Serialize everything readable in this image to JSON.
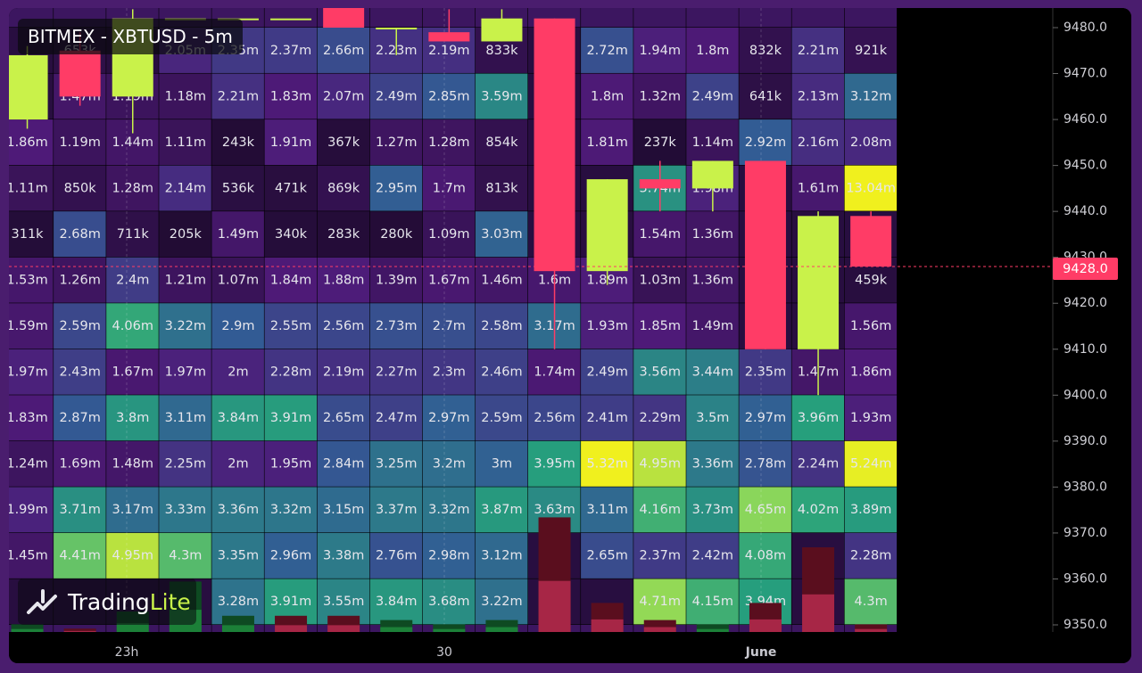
{
  "title": "BITMEX - XBTUSD - 5m",
  "logo": {
    "text_main": "Trading",
    "text_accent": "Lite"
  },
  "current_price": "9428.0",
  "colors": {
    "background": "#000000",
    "frame": "#4a1d6e",
    "bull": "#c9f24a",
    "bear": "#ff3c66",
    "heat_low": "#1b0a2a",
    "heat_mid1": "#4b1a78",
    "heat_mid2": "#2f5f95",
    "heat_mid3": "#27a07c",
    "heat_high": "#f2f21a"
  },
  "chart_data": {
    "type": "heatmap",
    "subtype": "order-book liquidity heatmap with candlesticks and volume bars",
    "y_axis": {
      "ticks": [
        "9480.0",
        "9470.0",
        "9460.0",
        "9450.0",
        "9440.0",
        "9430.0",
        "9420.0",
        "9410.0",
        "9400.0",
        "9390.0",
        "9380.0",
        "9370.0",
        "9360.0",
        "9350.0"
      ],
      "range": [
        9348,
        9484
      ]
    },
    "x_axis": {
      "labels": [
        "23h",
        "30",
        "June"
      ]
    },
    "rows": [
      [
        "1.86m",
        "1.19m",
        "1.44m",
        "1.11m",
        "243k",
        "1.91m",
        "367k",
        "1.27m",
        "1.28m",
        "854k",
        "",
        "1.81m",
        "237k",
        "1.14m",
        "2.92m",
        "2.16m",
        "2.08m"
      ],
      [
        "1.11m",
        "850k",
        "1.28m",
        "2.14m",
        "536k",
        "471k",
        "869k",
        "2.95m",
        "1.7m",
        "813k",
        "",
        "",
        "3.74m",
        "1.98m",
        "",
        "1.61m",
        "13.04m"
      ],
      [
        "311k",
        "2.68m",
        "711k",
        "205k",
        "1.49m",
        "340k",
        "283k",
        "280k",
        "1.09m",
        "3.03m",
        "",
        "",
        "1.54m",
        "1.36m",
        "",
        "",
        ""
      ],
      [
        "1.53m",
        "1.26m",
        "2.4m",
        "1.21m",
        "1.07m",
        "1.84m",
        "1.88m",
        "1.39m",
        "1.67m",
        "1.46m",
        "1.6m",
        "1.89m",
        "1.03m",
        "1.36m",
        "",
        "",
        "459k"
      ],
      [
        "1.59m",
        "2.59m",
        "4.06m",
        "3.22m",
        "2.9m",
        "2.55m",
        "2.56m",
        "2.73m",
        "2.7m",
        "2.58m",
        "3.17m",
        "1.93m",
        "1.85m",
        "1.49m",
        "",
        "",
        "1.56m"
      ],
      [
        "1.97m",
        "2.43m",
        "1.67m",
        "1.97m",
        "2m",
        "2.28m",
        "2.19m",
        "2.27m",
        "2.3m",
        "2.46m",
        "1.74m",
        "2.49m",
        "3.56m",
        "3.44m",
        "2.35m",
        "1.47m",
        "1.86m"
      ],
      [
        "1.83m",
        "2.87m",
        "3.8m",
        "3.11m",
        "3.84m",
        "3.91m",
        "2.65m",
        "2.47m",
        "2.97m",
        "2.59m",
        "2.56m",
        "2.41m",
        "2.29m",
        "3.5m",
        "2.97m",
        "3.96m",
        "1.93m"
      ],
      [
        "1.24m",
        "1.69m",
        "1.48m",
        "2.25m",
        "2m",
        "1.95m",
        "2.84m",
        "3.25m",
        "3.2m",
        "3m",
        "3.95m",
        "5.32m",
        "4.95m",
        "3.36m",
        "2.78m",
        "2.24m",
        "5.24m"
      ],
      [
        "1.99m",
        "3.71m",
        "3.17m",
        "3.33m",
        "3.36m",
        "3.32m",
        "3.15m",
        "3.37m",
        "3.32m",
        "3.87m",
        "3.63m",
        "3.11m",
        "4.16m",
        "3.73m",
        "4.65m",
        "4.02m",
        "3.89m"
      ],
      [
        "1.45m",
        "4.41m",
        "4.95m",
        "4.3m",
        "3.35m",
        "2.96m",
        "3.38m",
        "2.76m",
        "2.98m",
        "3.12m",
        "",
        "2.65m",
        "2.37m",
        "2.42m",
        "4.08m",
        "",
        "2.28m"
      ],
      [
        "",
        "",
        "",
        "",
        "3.28m",
        "3.91m",
        "3.55m",
        "3.84m",
        "3.68m",
        "3.22m",
        "",
        "",
        "4.71m",
        "4.15m",
        "3.94m",
        "",
        "4.3m"
      ]
    ],
    "top_rows": [
      [
        "",
        "653k",
        "",
        "2.05m",
        "2.35m",
        "2.37m",
        "2.66m",
        "2.23m",
        "2.19m",
        "833k",
        "",
        "2.72m",
        "1.94m",
        "1.8m",
        "832k",
        "2.21m",
        "921k"
      ],
      [
        "",
        "1.47m",
        "1.19m",
        "1.18m",
        "2.21m",
        "1.83m",
        "2.07m",
        "2.49m",
        "2.85m",
        "3.59m",
        "",
        "1.8m",
        "1.32m",
        "2.49m",
        "641k",
        "2.13m",
        "3.12m"
      ]
    ],
    "candles": [
      {
        "o": 9460,
        "c": 9474,
        "h": 9476,
        "l": 9458
      },
      {
        "o": 9475,
        "c": 9465,
        "h": 9479,
        "l": 9463
      },
      {
        "o": 9465,
        "c": 9482,
        "h": 9484,
        "l": 9457
      },
      {
        "o": 9482,
        "c": 9482,
        "h": 9482,
        "l": 9482
      },
      {
        "o": 9482,
        "c": 9482,
        "h": 9482,
        "l": 9482
      },
      {
        "o": 9482,
        "c": 9482,
        "h": 9482,
        "l": 9482
      },
      {
        "o": 9486,
        "c": 9480,
        "h": 9486,
        "l": 9480
      },
      {
        "o": 9480,
        "c": 9480,
        "h": 9480,
        "l": 9474
      },
      {
        "o": 9479,
        "c": 9477,
        "h": 9484,
        "l": 9477
      },
      {
        "o": 9477,
        "c": 9482,
        "h": 9484,
        "l": 9477
      },
      {
        "o": 9482,
        "c": 9427,
        "h": 9482,
        "l": 9410
      },
      {
        "o": 9427,
        "c": 9447,
        "h": 9447,
        "l": 9424
      },
      {
        "o": 9447,
        "c": 9445,
        "h": 9451,
        "l": 9440
      },
      {
        "o": 9445,
        "c": 9451,
        "h": 9451,
        "l": 9440
      },
      {
        "o": 9451,
        "c": 9410,
        "h": 9451,
        "l": 9410
      },
      {
        "o": 9410,
        "c": 9439,
        "h": 9440,
        "l": 9400
      },
      {
        "o": 9439,
        "c": 9428,
        "h": 9440,
        "l": 9428
      }
    ],
    "volume": [
      {
        "v": 2,
        "bull": true
      },
      {
        "v": 1,
        "bull": false
      },
      {
        "v": 5,
        "bull": true
      },
      {
        "v": 12,
        "bull": true
      },
      {
        "v": 4,
        "bull": true
      },
      {
        "v": 4,
        "bull": false
      },
      {
        "v": 4,
        "bull": false
      },
      {
        "v": 3,
        "bull": true
      },
      {
        "v": 2,
        "bull": true
      },
      {
        "v": 3,
        "bull": true
      },
      {
        "v": 27,
        "bull": false
      },
      {
        "v": 7,
        "bull": false
      },
      {
        "v": 3,
        "bull": false
      },
      {
        "v": 2,
        "bull": true
      },
      {
        "v": 7,
        "bull": false
      },
      {
        "v": 20,
        "bull": false
      },
      {
        "v": 2,
        "bull": false
      }
    ],
    "grid": true
  }
}
